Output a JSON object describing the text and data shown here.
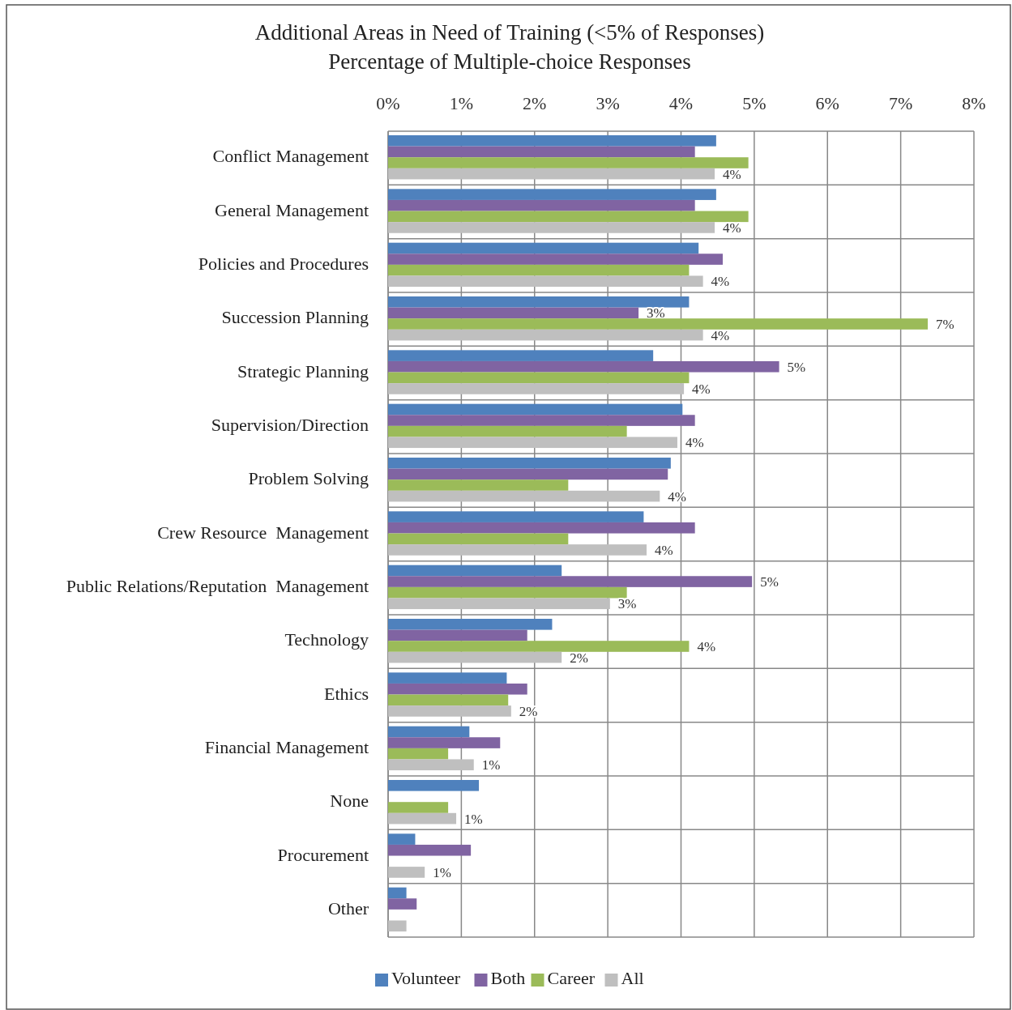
{
  "chart_data": {
    "type": "bar",
    "orientation": "horizontal",
    "title": "Additional Areas in Need of  Training (<5% of  Responses)",
    "subtitle": "Percentage of Multiple-choice Responses",
    "categories": [
      "Conflict Management",
      "General Management",
      "Policies and Procedures",
      "Succession Planning",
      "Strategic Planning",
      "Supervision/Direction",
      "Problem Solving",
      "Crew Resource  Management",
      "Public Relations/Reputation  Management",
      "Technology",
      "Ethics",
      "Financial Management",
      "None",
      "Procurement",
      "Other"
    ],
    "series": [
      {
        "name": "Volunteer",
        "color": "#4f81bd",
        "values": [
          4.48,
          4.48,
          4.24,
          4.11,
          3.62,
          4.02,
          3.86,
          3.49,
          2.37,
          2.24,
          1.62,
          1.11,
          1.24,
          0.37,
          0.25
        ]
      },
      {
        "name": "Both",
        "color": "#8064a2",
        "values": [
          4.19,
          4.19,
          4.57,
          3.42,
          5.34,
          4.19,
          3.82,
          4.19,
          4.97,
          1.9,
          1.9,
          1.53,
          null,
          1.13,
          0.39
        ],
        "value_labels": [
          null,
          null,
          null,
          "3%",
          "5%",
          null,
          null,
          null,
          "5%",
          null,
          null,
          null,
          null,
          null,
          null
        ]
      },
      {
        "name": "Career",
        "color": "#9bbb59",
        "values": [
          4.92,
          4.92,
          4.11,
          7.37,
          4.11,
          3.26,
          2.46,
          2.46,
          3.26,
          4.11,
          1.64,
          0.82,
          0.82,
          null,
          null
        ],
        "value_labels": [
          null,
          null,
          null,
          "7%",
          null,
          null,
          null,
          null,
          null,
          "4%",
          null,
          null,
          null,
          null,
          null
        ]
      },
      {
        "name": "All",
        "color": "#bfbfbf",
        "values": [
          4.46,
          4.46,
          4.3,
          4.3,
          4.04,
          3.95,
          3.71,
          3.53,
          3.03,
          2.37,
          1.68,
          1.17,
          0.93,
          0.5,
          0.25
        ],
        "value_labels": [
          "4%",
          "4%",
          "4%",
          "4%",
          "4%",
          "4%",
          "4%",
          "4%",
          "3%",
          "2%",
          "2%",
          "1%",
          "1%",
          "1%",
          null
        ]
      }
    ],
    "xlim": [
      0,
      8
    ],
    "xticks": [
      {
        "value": 0,
        "label": "0%"
      },
      {
        "value": 1,
        "label": "1%"
      },
      {
        "value": 2,
        "label": "2%"
      },
      {
        "value": 3,
        "label": "3%"
      },
      {
        "value": 4,
        "label": "4%"
      },
      {
        "value": 5,
        "label": "5%"
      },
      {
        "value": 6,
        "label": "6%"
      },
      {
        "value": 7,
        "label": "7%"
      },
      {
        "value": 8,
        "label": "8%"
      }
    ],
    "grid": true,
    "legend": "bottom"
  }
}
